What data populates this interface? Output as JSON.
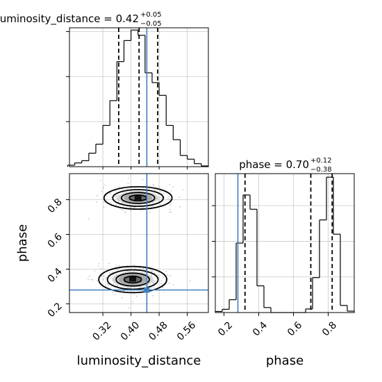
{
  "chart_data": [
    {
      "type": "histogram",
      "panel": "marginal",
      "parameter": "luminosity_distance",
      "title": {
        "main": "luminosity_distance = 0.42",
        "upper": "+0.05",
        "lower": "−0.05"
      },
      "x": [
        0.23,
        0.25,
        0.27,
        0.29,
        0.31,
        0.33,
        0.35,
        0.37,
        0.39,
        0.41,
        0.43,
        0.45,
        0.47,
        0.49,
        0.51,
        0.53,
        0.55,
        0.57,
        0.59,
        0.61
      ],
      "values": [
        2,
        5,
        8,
        18,
        30,
        55,
        88,
        140,
        168,
        182,
        175,
        125,
        112,
        95,
        55,
        36,
        15,
        10,
        4,
        1
      ],
      "quantiles": [
        0.365,
        0.423,
        0.476
      ],
      "truth": 0.445,
      "xlim": [
        0.225,
        0.62
      ],
      "ylim": [
        0,
        185
      ],
      "grid": true
    },
    {
      "type": "histogram",
      "panel": "marginal",
      "parameter": "phase",
      "title": {
        "main": "phase = 0.70",
        "upper": "+0.12",
        "lower": "−0.38"
      },
      "x": [
        0.17,
        0.21,
        0.25,
        0.29,
        0.33,
        0.37,
        0.41,
        0.45,
        0.49,
        0.53,
        0.57,
        0.61,
        0.65,
        0.69,
        0.73,
        0.77,
        0.81,
        0.85,
        0.89,
        0.93
      ],
      "values": [
        3,
        9,
        36,
        195,
        330,
        290,
        75,
        14,
        0,
        0,
        0,
        0,
        0,
        10,
        98,
        260,
        380,
        220,
        20,
        4
      ],
      "quantiles": [
        0.321,
        0.7,
        0.823
      ],
      "truth": 0.28,
      "xlim": [
        0.15,
        0.95
      ],
      "ylim": [
        0,
        390
      ],
      "xticks": [
        "0.2",
        "0.4",
        "0.6",
        "0.8"
      ],
      "xlabel": "phase",
      "grid": true
    },
    {
      "type": "scatter",
      "panel": "joint",
      "x_parameter": "luminosity_distance",
      "y_parameter": "phase",
      "xlabel": "luminosity_distance",
      "ylabel": "phase",
      "xticks": [
        "0.32",
        "0.40",
        "0.48",
        "0.56"
      ],
      "yticks": [
        "0.2",
        "0.4",
        "0.6",
        "0.8"
      ],
      "xlim": [
        0.225,
        0.62
      ],
      "ylim": [
        0.15,
        0.95
      ],
      "modes": [
        {
          "x": 0.42,
          "y": 0.81,
          "sx": 0.045,
          "sy": 0.03
        },
        {
          "x": 0.405,
          "y": 0.34,
          "sx": 0.045,
          "sy": 0.035
        }
      ],
      "contour_levels": [
        "0.5-sigma",
        "1-sigma",
        "1.5-sigma",
        "2-sigma"
      ],
      "truth": {
        "x": 0.445,
        "y": 0.28
      },
      "grid": true
    }
  ]
}
